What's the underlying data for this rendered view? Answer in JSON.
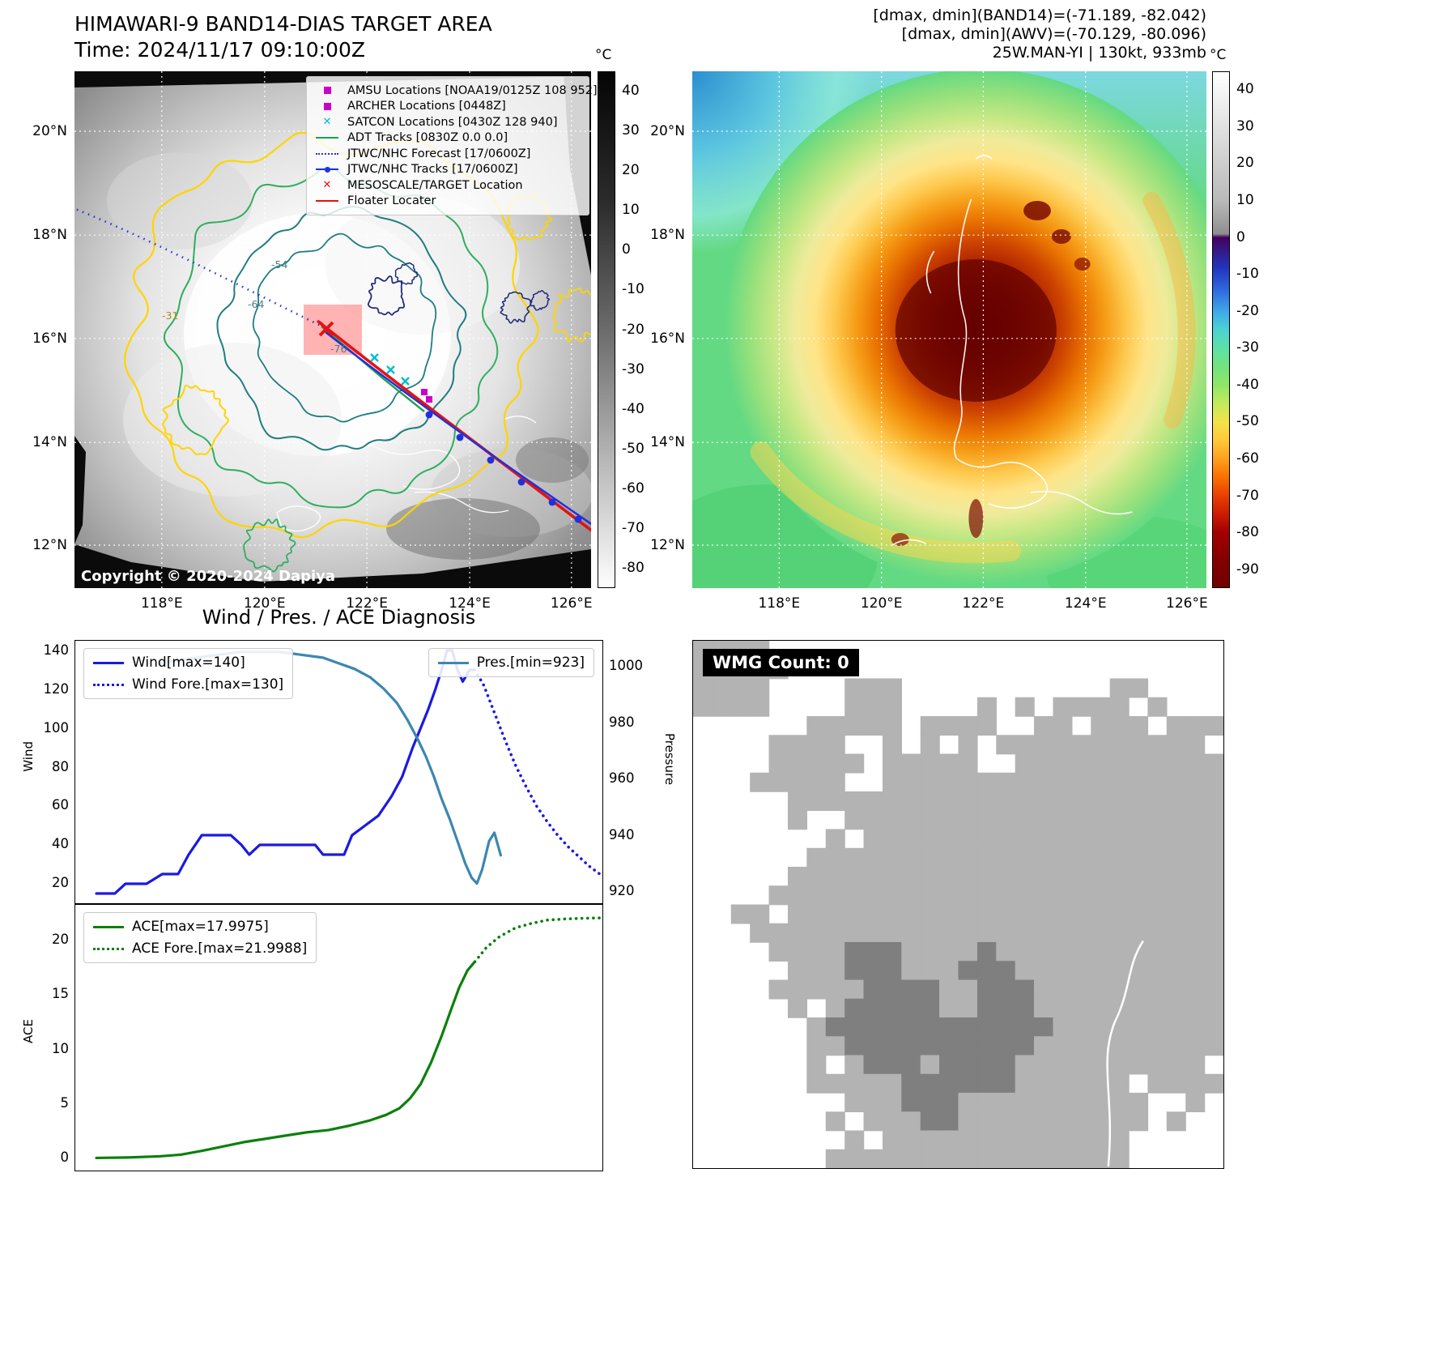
{
  "band14": {
    "title": "HIMAWARI-9 BAND14-DIAS TARGET AREA",
    "subtitle": "Time: 2024/11/17 09:10:00Z",
    "copyright": "Copyright © 2020-2024 Dapiya",
    "colorbar_unit": "°C",
    "colorbar_ticks": [
      40,
      30,
      20,
      10,
      0,
      -10,
      -20,
      -30,
      -40,
      -50,
      -60,
      -70,
      -80
    ],
    "colorbar_range": [
      45,
      -85
    ],
    "lat_ticks": [
      "20°N",
      "18°N",
      "16°N",
      "14°N",
      "12°N"
    ],
    "lon_ticks": [
      "118°E",
      "120°E",
      "122°E",
      "124°E",
      "126°E"
    ],
    "contour_labels": [
      "-31",
      "-54",
      "-64",
      "-76"
    ],
    "legend": [
      {
        "label": "AMSU Locations [NOAA19/0125Z 108 952]",
        "glyph": "square",
        "color": "#cc00cc"
      },
      {
        "label": "ARCHER Locations [0448Z]",
        "glyph": "square",
        "color": "#cc00cc"
      },
      {
        "label": "SATCON Locations [0430Z 128 940]",
        "glyph": "x",
        "color": "#00bcd0"
      },
      {
        "label": "ADT Tracks [0830Z 0.0 0.0]",
        "glyph": "line",
        "color": "#1d9e4f"
      },
      {
        "label": "JTWC/NHC Forecast [17/0600Z]",
        "glyph": "dotted",
        "color": "#2030dd"
      },
      {
        "label": "JTWC/NHC Tracks [17/0600Z]",
        "glyph": "line-dot",
        "color": "#2030dd"
      },
      {
        "label": "MESOSCALE/TARGET Location",
        "glyph": "x",
        "color": "#e51212"
      },
      {
        "label": "Floater Locater",
        "glyph": "line",
        "color": "#e51212"
      }
    ]
  },
  "awv": {
    "header_lines": [
      "[dmax, dmin](BAND14)=(-71.189, -82.042)",
      "[dmax, dmin](AWV)=(-70.129, -80.096)",
      "25W.MAN-YI | 130kt, 933mb"
    ],
    "colorbar_unit": "°C",
    "colorbar_ticks": [
      40,
      30,
      20,
      10,
      0,
      -10,
      -20,
      -30,
      -40,
      -50,
      -60,
      -70,
      -80,
      -90
    ],
    "colorbar_range": [
      45,
      -95
    ],
    "lat_ticks": [
      "20°N",
      "18°N",
      "16°N",
      "14°N",
      "12°N"
    ],
    "lon_ticks": [
      "118°E",
      "120°E",
      "122°E",
      "124°E",
      "126°E"
    ]
  },
  "charts_title": "Wind / Pres. / ACE Diagnosis",
  "chart_data": [
    {
      "type": "line",
      "xlim": [
        0,
        1
      ],
      "ylabel_left": "Wind",
      "ylabel_right": "Pressure",
      "ylim_left": [
        10,
        145
      ],
      "yticks_left": [
        20,
        40,
        60,
        80,
        100,
        120,
        140
      ],
      "ylim_right": [
        916,
        1009
      ],
      "yticks_right": [
        920,
        940,
        960,
        980,
        1000
      ],
      "legend_position": "inside top-left and top-right",
      "series": [
        {
          "name": "Wind[max=140]",
          "axis": "left",
          "style": "solid",
          "color": "#1a1ae0",
          "x": [
            0.04,
            0.075,
            0.095,
            0.135,
            0.165,
            0.195,
            0.215,
            0.24,
            0.265,
            0.295,
            0.315,
            0.33,
            0.35,
            0.455,
            0.47,
            0.51,
            0.525,
            0.55,
            0.575,
            0.6,
            0.62,
            0.64,
            0.655,
            0.67,
            0.683,
            0.695,
            0.705,
            0.715,
            0.725,
            0.735,
            0.748,
            0.758
          ],
          "y": [
            15,
            15,
            20,
            20,
            25,
            25,
            35,
            45,
            45,
            45,
            40,
            35,
            40,
            40,
            35,
            35,
            45,
            50,
            55,
            65,
            75,
            90,
            100,
            110,
            120,
            130,
            140,
            140,
            130,
            124,
            130,
            130
          ]
        },
        {
          "name": "Wind Fore.[max=130]",
          "axis": "left",
          "style": "dotted",
          "color": "#1a1ae0",
          "x": [
            0.758,
            0.775,
            0.795,
            0.815,
            0.835,
            0.855,
            0.875,
            0.895,
            0.915,
            0.935,
            0.955,
            0.975,
            1.0
          ],
          "y": [
            130,
            122,
            108,
            94,
            81,
            70,
            60,
            52,
            45,
            39,
            34,
            29,
            24
          ]
        },
        {
          "name": "Pres.[min=923]",
          "axis": "right",
          "style": "solid",
          "color": "#3d87b0",
          "x": [
            0.16,
            0.195,
            0.23,
            0.27,
            0.31,
            0.35,
            0.39,
            0.43,
            0.47,
            0.5,
            0.53,
            0.56,
            0.585,
            0.61,
            0.63,
            0.65,
            0.665,
            0.68,
            0.695,
            0.71,
            0.725,
            0.74,
            0.752,
            0.762,
            0.772,
            0.785,
            0.795,
            0.807
          ],
          "y": [
            1001,
            1002,
            1003,
            1004,
            1005,
            1005,
            1005,
            1004,
            1003,
            1001,
            999,
            996,
            992,
            987,
            981,
            974,
            968,
            961,
            953,
            946,
            938,
            930,
            925,
            923,
            928,
            938,
            941,
            933
          ]
        }
      ]
    },
    {
      "type": "line",
      "xlim": [
        0,
        1
      ],
      "ylabel_left": "ACE",
      "ylim_left": [
        -1.1,
        23.2
      ],
      "yticks_left": [
        0,
        5,
        10,
        15,
        20
      ],
      "legend_position": "inside top-left",
      "series": [
        {
          "name": "ACE[max=17.9975]",
          "axis": "left",
          "style": "solid",
          "color": "#0c800c",
          "x": [
            0.04,
            0.1,
            0.16,
            0.2,
            0.24,
            0.28,
            0.32,
            0.36,
            0.4,
            0.44,
            0.48,
            0.52,
            0.56,
            0.59,
            0.615,
            0.635,
            0.655,
            0.675,
            0.695,
            0.712,
            0.728,
            0.744,
            0.758
          ],
          "y": [
            0.05,
            0.1,
            0.2,
            0.35,
            0.7,
            1.1,
            1.5,
            1.8,
            2.1,
            2.4,
            2.6,
            3.0,
            3.5,
            4.0,
            4.6,
            5.5,
            6.8,
            8.8,
            11.2,
            13.5,
            15.6,
            17.2,
            18.0
          ]
        },
        {
          "name": "ACE Fore.[max=21.9988]",
          "axis": "left",
          "style": "dotted",
          "color": "#0c800c",
          "x": [
            0.758,
            0.78,
            0.805,
            0.835,
            0.865,
            0.895,
            0.925,
            0.96,
            1.0
          ],
          "y": [
            18.0,
            19.3,
            20.3,
            21.1,
            21.5,
            21.8,
            21.9,
            21.97,
            22.0
          ]
        }
      ]
    }
  ],
  "wmg": {
    "label": "WMG Count: 0"
  }
}
